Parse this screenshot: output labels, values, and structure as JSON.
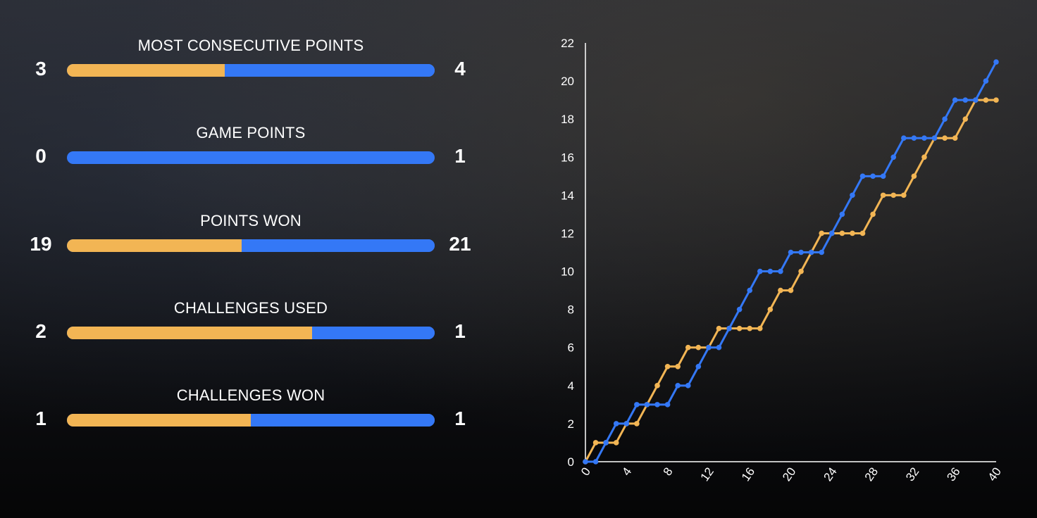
{
  "colors": {
    "player_a": "#f2b554",
    "player_b": "#3478f6"
  },
  "stats": [
    {
      "label": "MOST CONSECUTIVE POINTS",
      "left": 3,
      "right": 4
    },
    {
      "label": "GAME POINTS",
      "left": 0,
      "right": 1
    },
    {
      "label": "POINTS WON",
      "left": 19,
      "right": 21
    },
    {
      "label": "CHALLENGES USED",
      "left": 2,
      "right": 1
    },
    {
      "label": "CHALLENGES WON",
      "left": 1,
      "right": 1
    }
  ],
  "chart_data": {
    "type": "line",
    "title": "",
    "xlabel": "",
    "ylabel": "",
    "xlim": [
      0,
      40
    ],
    "ylim": [
      0,
      22
    ],
    "xticks": [
      0,
      4,
      8,
      12,
      16,
      20,
      24,
      28,
      32,
      36,
      40
    ],
    "yticks": [
      0,
      2,
      4,
      6,
      8,
      10,
      12,
      14,
      16,
      18,
      20,
      22
    ],
    "x": [
      0,
      1,
      2,
      3,
      4,
      5,
      6,
      7,
      8,
      9,
      10,
      11,
      12,
      13,
      14,
      15,
      16,
      17,
      18,
      19,
      20,
      21,
      22,
      23,
      24,
      25,
      26,
      27,
      28,
      29,
      30,
      31,
      32,
      33,
      34,
      35,
      36,
      37,
      38,
      39,
      40
    ],
    "series": [
      {
        "name": "player_a",
        "color": "#f2b554",
        "values": [
          0,
          1,
          1,
          1,
          2,
          2,
          3,
          4,
          5,
          5,
          6,
          6,
          6,
          7,
          7,
          7,
          7,
          7,
          8,
          9,
          9,
          10,
          11,
          12,
          12,
          12,
          12,
          12,
          13,
          14,
          14,
          14,
          15,
          16,
          17,
          17,
          17,
          18,
          19,
          19,
          19
        ]
      },
      {
        "name": "player_b",
        "color": "#3478f6",
        "values": [
          0,
          0,
          1,
          2,
          2,
          3,
          3,
          3,
          3,
          4,
          4,
          5,
          6,
          6,
          7,
          8,
          9,
          10,
          10,
          10,
          11,
          11,
          11,
          11,
          12,
          13,
          14,
          15,
          15,
          15,
          16,
          17,
          17,
          17,
          17,
          18,
          19,
          19,
          19,
          20,
          21
        ]
      }
    ]
  }
}
